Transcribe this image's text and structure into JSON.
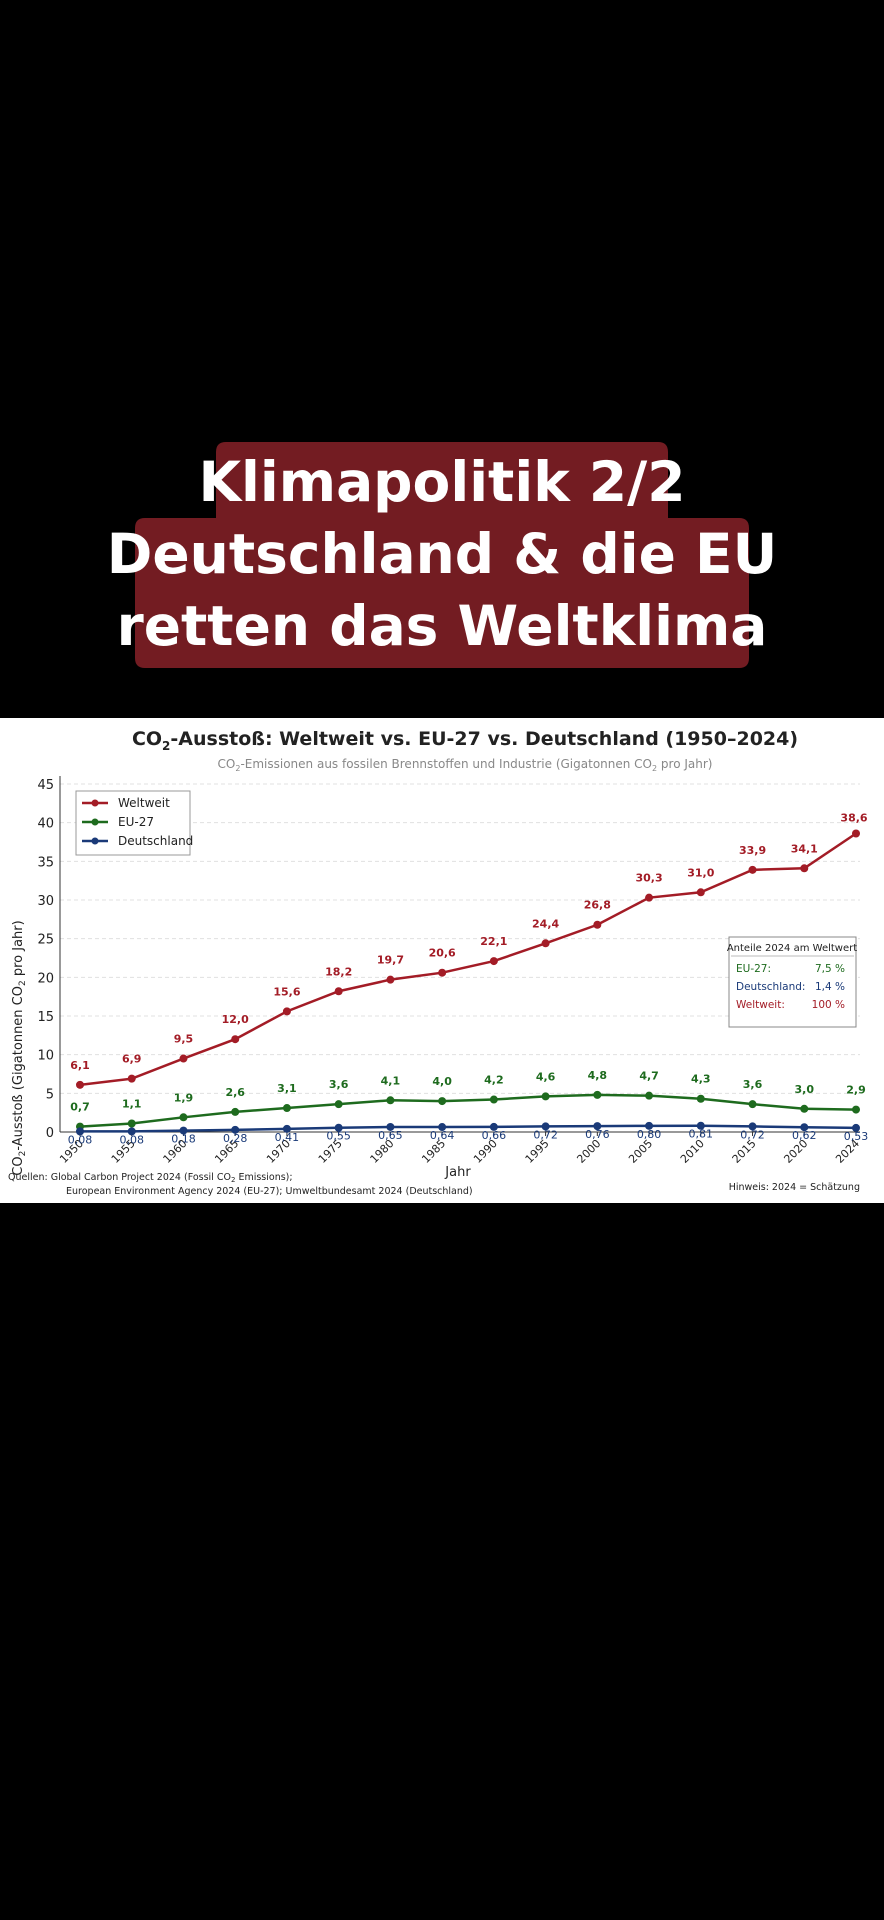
{
  "overlay": {
    "lines": [
      "Klimapolitik 2/2",
      "Deutschland & die EU",
      "retten das Weltklima"
    ],
    "box_color": "#731c22"
  },
  "chart": {
    "title_prefix": "CO",
    "title_sub": "2",
    "title_suffix": "-Ausstoß: Weltweit vs. EU-27 vs. Deutschland (1950–2024)",
    "subtitle_prefix": "CO",
    "subtitle_sub": "2",
    "subtitle_middle": "-Emissionen aus fossilen Brennstoffen und Industrie (Gigatonnen CO",
    "subtitle_sub2": "2",
    "subtitle_suffix": " pro Jahr)",
    "ylabel_prefix": "CO",
    "ylabel_sub": "2",
    "ylabel_middle": "-Ausstoß (Gigatonnen CO",
    "ylabel_sub2": "2",
    "ylabel_suffix": " pro Jahr)",
    "xlabel": "Jahr",
    "source_line1_prefix": "Quellen: Global Carbon Project 2024 (Fossil CO",
    "source_line1_sub": "2",
    "source_line1_suffix": " Emissions);",
    "source_line2": "European Environment Agency 2024 (EU-27); Umweltbundesamt 2024 (Deutschland)",
    "note": "Hinweis: 2024 = Schätzung",
    "share_box": {
      "title": "Anteile 2024 am Weltwert",
      "rows": [
        {
          "label": "EU-27:",
          "value": "7,5 %",
          "color": "#1e6b1e"
        },
        {
          "label": "Deutschland:",
          "value": "1,4 %",
          "color": "#1a3a78"
        },
        {
          "label": "Weltweit:",
          "value": "100 %",
          "color": "#a31c26"
        }
      ]
    }
  },
  "chart_data": {
    "type": "line",
    "title": "CO2-Ausstoß: Weltweit vs. EU-27 vs. Deutschland (1950–2024)",
    "xlabel": "Jahr",
    "ylabel": "CO2-Ausstoß (Gigatonnen CO2 pro Jahr)",
    "categories": [
      "1950",
      "1955",
      "1960",
      "1965",
      "1970",
      "1975",
      "1980",
      "1985",
      "1990",
      "1995",
      "2000",
      "2005",
      "2010",
      "2015",
      "2020",
      "2024"
    ],
    "yticks": [
      "0",
      "5",
      "10",
      "15",
      "20",
      "25",
      "30",
      "35",
      "40",
      "45"
    ],
    "ylim": [
      0,
      45
    ],
    "grid": true,
    "legend_position": "top-left",
    "series": [
      {
        "name": "Weltweit",
        "color": "#a31c26",
        "values": [
          6.1,
          6.9,
          9.5,
          12.0,
          15.6,
          18.2,
          19.7,
          20.6,
          22.1,
          24.4,
          26.8,
          30.3,
          31.0,
          33.9,
          34.1,
          38.6
        ],
        "labels": [
          "6,1",
          "6,9",
          "9,5",
          "12,0",
          "15,6",
          "18,2",
          "19,7",
          "20,6",
          "22,1",
          "24,4",
          "26,8",
          "30,3",
          "31,0",
          "33,9",
          "34,1",
          "38,6"
        ]
      },
      {
        "name": "EU-27",
        "color": "#1e6b1e",
        "values": [
          0.7,
          1.1,
          1.9,
          2.6,
          3.1,
          3.6,
          4.1,
          4.0,
          4.2,
          4.6,
          4.8,
          4.7,
          4.3,
          3.6,
          3.0,
          2.9
        ],
        "labels": [
          "0,7",
          "1,1",
          "1,9",
          "2,6",
          "3,1",
          "3,6",
          "4,1",
          "4,0",
          "4,2",
          "4,6",
          "4,8",
          "4,7",
          "4,3",
          "3,6",
          "3,0",
          "2,9"
        ]
      },
      {
        "name": "Deutschland",
        "color": "#1a3a78",
        "values": [
          0.08,
          0.08,
          0.18,
          0.28,
          0.41,
          0.55,
          0.65,
          0.64,
          0.66,
          0.72,
          0.76,
          0.8,
          0.81,
          0.72,
          0.62,
          0.53
        ],
        "labels": [
          "0,08",
          "0,08",
          "0,18",
          "0,28",
          "0,41",
          "0,55",
          "0,65",
          "0,64",
          "0,66",
          "0,72",
          "0,76",
          "0,80",
          "0,81",
          "0,72",
          "0,62",
          "0,53"
        ]
      }
    ]
  }
}
